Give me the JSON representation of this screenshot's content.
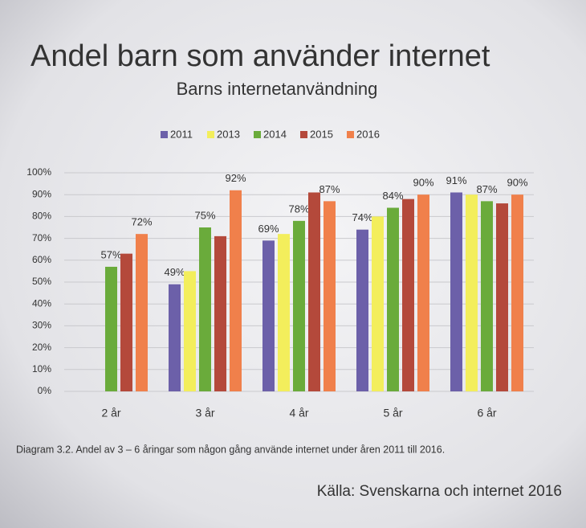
{
  "header": "Andel barn som använder internet",
  "chart_data": {
    "type": "bar",
    "title": "Barns internetanvändning",
    "categories": [
      "2 år",
      "3 år",
      "4 år",
      "5 år",
      "6 år"
    ],
    "series": [
      {
        "name": "2011",
        "color": "#6c60a9",
        "values": [
          null,
          49,
          69,
          74,
          91
        ],
        "value_labels": [
          null,
          "49%",
          "69%",
          "74%",
          "91%"
        ]
      },
      {
        "name": "2013",
        "color": "#f3ee5c",
        "values": [
          null,
          55,
          72,
          80,
          90
        ],
        "value_labels": [
          null,
          null,
          null,
          null,
          null
        ]
      },
      {
        "name": "2014",
        "color": "#6aab3b",
        "values": [
          57,
          75,
          78,
          84,
          87
        ],
        "value_labels": [
          "57%",
          "75%",
          "78%",
          "84%",
          "87%"
        ]
      },
      {
        "name": "2015",
        "color": "#b4493b",
        "values": [
          63,
          71,
          91,
          88,
          86
        ],
        "value_labels": [
          null,
          null,
          null,
          null,
          null
        ]
      },
      {
        "name": "2016",
        "color": "#f0804b",
        "values": [
          72,
          92,
          87,
          90,
          90
        ],
        "value_labels": [
          "72%",
          "92%",
          "87%",
          "90%",
          "90%"
        ]
      }
    ],
    "ylim": [
      0,
      100
    ],
    "yticks": [
      {
        "value": 0,
        "label": "0%"
      },
      {
        "value": 10,
        "label": "10%"
      },
      {
        "value": 20,
        "label": "20%"
      },
      {
        "value": 30,
        "label": "30%"
      },
      {
        "value": 40,
        "label": "40%"
      },
      {
        "value": 50,
        "label": "50%"
      },
      {
        "value": 60,
        "label": "60%"
      },
      {
        "value": 70,
        "label": "70%"
      },
      {
        "value": 80,
        "label": "80%"
      },
      {
        "value": 90,
        "label": "90%"
      },
      {
        "value": 100,
        "label": "100%"
      }
    ],
    "grid": true,
    "legend": "top"
  },
  "caption": "Diagram 3.2. Andel av 3 – 6 åringar som någon gång använde internet under åren 2011 till 2016.",
  "source": "Källa: Svenskarna och internet 2016"
}
